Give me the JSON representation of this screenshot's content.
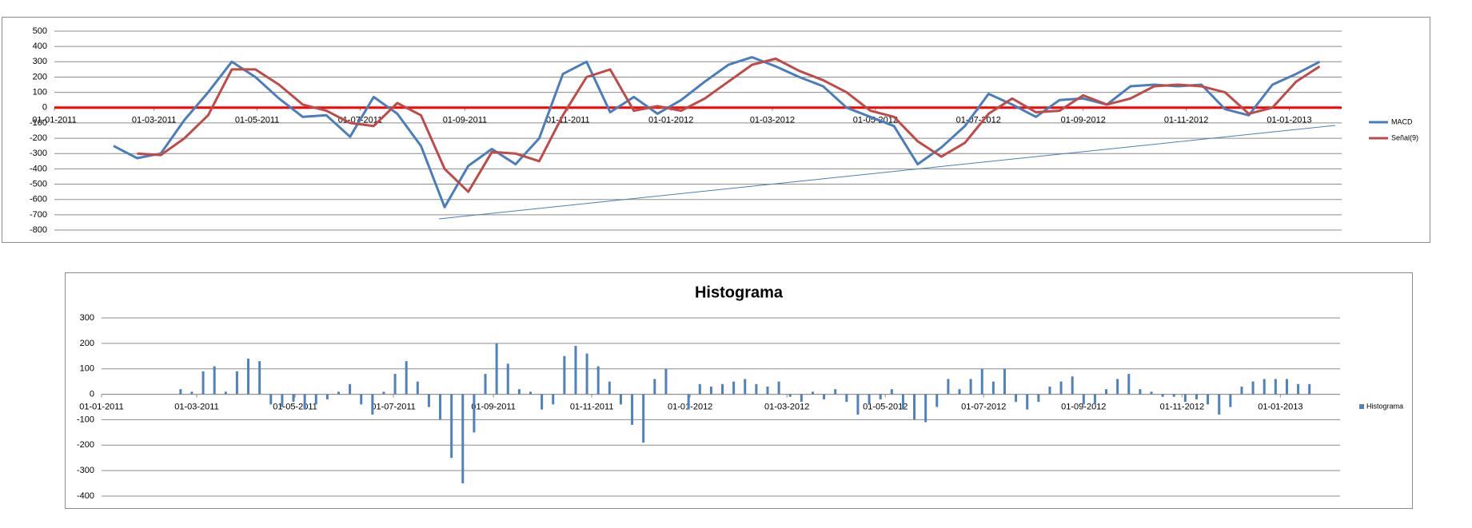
{
  "chart_data": [
    {
      "type": "line",
      "x": [
        "2011-02-05",
        "2011-02-19",
        "2011-03-05",
        "2011-03-19",
        "2011-04-02",
        "2011-04-16",
        "2011-04-30",
        "2011-05-14",
        "2011-05-28",
        "2011-06-11",
        "2011-06-25",
        "2011-07-09",
        "2011-07-23",
        "2011-08-06",
        "2011-08-20",
        "2011-09-03",
        "2011-09-17",
        "2011-10-01",
        "2011-10-15",
        "2011-10-29",
        "2011-11-12",
        "2011-11-26",
        "2011-12-10",
        "2011-12-24",
        "2012-01-07",
        "2012-01-21",
        "2012-02-04",
        "2012-02-18",
        "2012-03-03",
        "2012-03-17",
        "2012-03-31",
        "2012-04-14",
        "2012-04-28",
        "2012-05-12",
        "2012-05-26",
        "2012-06-09",
        "2012-06-23",
        "2012-07-07",
        "2012-07-21",
        "2012-08-04",
        "2012-08-18",
        "2012-09-01",
        "2012-09-15",
        "2012-09-29",
        "2012-10-13",
        "2012-10-27",
        "2012-11-10",
        "2012-11-24",
        "2012-12-08",
        "2012-12-22",
        "2013-01-05",
        "2013-01-19"
      ],
      "series": [
        {
          "name": "MACD",
          "color": "#4a7ebb",
          "values": [
            -250,
            -330,
            -300,
            -80,
            100,
            300,
            200,
            60,
            -60,
            -50,
            -190,
            70,
            -40,
            -250,
            -650,
            -380,
            -270,
            -370,
            -200,
            220,
            300,
            -30,
            70,
            -40,
            50,
            170,
            280,
            330,
            270,
            200,
            140,
            0,
            -60,
            -120,
            -370,
            -260,
            -120,
            90,
            20,
            -60,
            50,
            60,
            20,
            140,
            150,
            140,
            150,
            -10,
            -50,
            150,
            220,
            300
          ]
        },
        {
          "name": "Señal(9)",
          "color": "#be4b48",
          "values": [
            null,
            -300,
            -310,
            -200,
            -50,
            250,
            250,
            150,
            20,
            -20,
            -100,
            -120,
            30,
            -50,
            -400,
            -550,
            -290,
            -300,
            -350,
            -50,
            200,
            250,
            -20,
            10,
            -20,
            60,
            170,
            280,
            320,
            240,
            180,
            100,
            -20,
            -60,
            -220,
            -320,
            -230,
            -40,
            60,
            -30,
            -20,
            80,
            20,
            60,
            140,
            150,
            140,
            100,
            -40,
            0,
            170,
            270
          ]
        }
      ],
      "xlim": [
        "2011-01-01",
        "2013-02-01"
      ],
      "xticks": [
        {
          "value": "2011-01-01",
          "label": "01-01-2011"
        },
        {
          "value": "2011-03-01",
          "label": "01-03-2011"
        },
        {
          "value": "2011-05-01",
          "label": "01-05-2011"
        },
        {
          "value": "2011-07-01",
          "label": "01-07-2011"
        },
        {
          "value": "2011-09-01",
          "label": "01-09-2011"
        },
        {
          "value": "2011-11-01",
          "label": "01-11-2011"
        },
        {
          "value": "2012-01-01",
          "label": "01-01-2012"
        },
        {
          "value": "2012-03-01",
          "label": "01-03-2012"
        },
        {
          "value": "2012-05-01",
          "label": "01-05-2012"
        },
        {
          "value": "2012-07-01",
          "label": "01-07-2012"
        },
        {
          "value": "2012-09-01",
          "label": "01-09-2012"
        },
        {
          "value": "2012-11-01",
          "label": "01-11-2012"
        },
        {
          "value": "2013-01-01",
          "label": "01-01-2013"
        }
      ],
      "ylim": [
        -800,
        500
      ],
      "yticks": [
        -800,
        -700,
        -600,
        -500,
        -400,
        -300,
        -200,
        -100,
        0,
        100,
        200,
        300,
        400,
        500
      ],
      "grid": true,
      "zero_line_color": "#ff0000",
      "legend": "right"
    },
    {
      "type": "bar",
      "title": "Histograma",
      "x": [
        "2011-02-05",
        "2011-02-12",
        "2011-02-19",
        "2011-02-26",
        "2011-03-05",
        "2011-03-12",
        "2011-03-19",
        "2011-03-26",
        "2011-04-02",
        "2011-04-09",
        "2011-04-16",
        "2011-04-23",
        "2011-04-30",
        "2011-05-07",
        "2011-05-14",
        "2011-05-21",
        "2011-05-28",
        "2011-06-04",
        "2011-06-11",
        "2011-06-18",
        "2011-06-25",
        "2011-07-02",
        "2011-07-09",
        "2011-07-16",
        "2011-07-23",
        "2011-07-30",
        "2011-08-06",
        "2011-08-13",
        "2011-08-20",
        "2011-08-27",
        "2011-09-03",
        "2011-09-10",
        "2011-09-17",
        "2011-09-24",
        "2011-10-01",
        "2011-10-08",
        "2011-10-15",
        "2011-10-22",
        "2011-10-29",
        "2011-11-05",
        "2011-11-12",
        "2011-11-19",
        "2011-11-26",
        "2011-12-03",
        "2011-12-10",
        "2011-12-17",
        "2011-12-24",
        "2011-12-31",
        "2012-01-07",
        "2012-01-14",
        "2012-01-21",
        "2012-01-28",
        "2012-02-04",
        "2012-02-11",
        "2012-02-18",
        "2012-02-25",
        "2012-03-03",
        "2012-03-10",
        "2012-03-17",
        "2012-03-24",
        "2012-03-31",
        "2012-04-07",
        "2012-04-14",
        "2012-04-21",
        "2012-04-28",
        "2012-05-05",
        "2012-05-12",
        "2012-05-19",
        "2012-05-26",
        "2012-06-02",
        "2012-06-09",
        "2012-06-16",
        "2012-06-23",
        "2012-06-30",
        "2012-07-07",
        "2012-07-14",
        "2012-07-21",
        "2012-07-28",
        "2012-08-04",
        "2012-08-11",
        "2012-08-18",
        "2012-08-25",
        "2012-09-01",
        "2012-09-08",
        "2012-09-15",
        "2012-09-22",
        "2012-09-29",
        "2012-10-06",
        "2012-10-13",
        "2012-10-20",
        "2012-10-27",
        "2012-11-03",
        "2012-11-10",
        "2012-11-17",
        "2012-11-24",
        "2012-12-01",
        "2012-12-08",
        "2012-12-15",
        "2012-12-22",
        "2012-12-29",
        "2013-01-05",
        "2013-01-12",
        "2013-01-19"
      ],
      "series": [
        {
          "name": "Histograma",
          "color": "#4f81bd",
          "values": [
            0,
            0,
            20,
            10,
            90,
            110,
            10,
            90,
            140,
            130,
            -40,
            -50,
            -30,
            -60,
            -40,
            -20,
            10,
            40,
            -40,
            -80,
            10,
            80,
            130,
            50,
            -50,
            -100,
            -250,
            -350,
            -150,
            80,
            200,
            120,
            20,
            10,
            -60,
            -40,
            150,
            190,
            160,
            110,
            50,
            -40,
            -120,
            -190,
            60,
            100,
            0,
            -60,
            40,
            30,
            40,
            50,
            60,
            40,
            30,
            50,
            -10,
            -30,
            10,
            -20,
            20,
            -30,
            -80,
            -40,
            -20,
            20,
            -60,
            -100,
            -110,
            -50,
            60,
            20,
            60,
            100,
            50,
            100,
            -30,
            -60,
            -30,
            30,
            50,
            70,
            -40,
            -40,
            20,
            60,
            80,
            20,
            10,
            -10,
            -10,
            -30,
            -20,
            -40,
            -80,
            -50,
            30,
            50,
            60,
            60,
            60,
            40,
            40
          ]
        }
      ],
      "xlim": [
        "2011-01-01",
        "2013-02-07"
      ],
      "xticks": [
        {
          "value": "2011-01-01",
          "label": "01-01-2011"
        },
        {
          "value": "2011-03-01",
          "label": "01-03-2011"
        },
        {
          "value": "2011-05-01",
          "label": "01-05-2011"
        },
        {
          "value": "2011-07-01",
          "label": "01-07-2011"
        },
        {
          "value": "2011-09-01",
          "label": "01-09-2011"
        },
        {
          "value": "2011-11-01",
          "label": "01-11-2011"
        },
        {
          "value": "2012-01-01",
          "label": "01-01-2012"
        },
        {
          "value": "2012-03-01",
          "label": "01-03-2012"
        },
        {
          "value": "2012-05-01",
          "label": "01-05-2012"
        },
        {
          "value": "2012-07-01",
          "label": "01-07-2012"
        },
        {
          "value": "2012-09-01",
          "label": "01-09-2012"
        },
        {
          "value": "2012-11-01",
          "label": "01-11-2012"
        },
        {
          "value": "2013-01-01",
          "label": "01-01-2013"
        }
      ],
      "ylim": [
        -400,
        300
      ],
      "yticks": [
        -400,
        -300,
        -200,
        -100,
        0,
        100,
        200,
        300
      ],
      "grid": true,
      "legend": "right"
    }
  ]
}
